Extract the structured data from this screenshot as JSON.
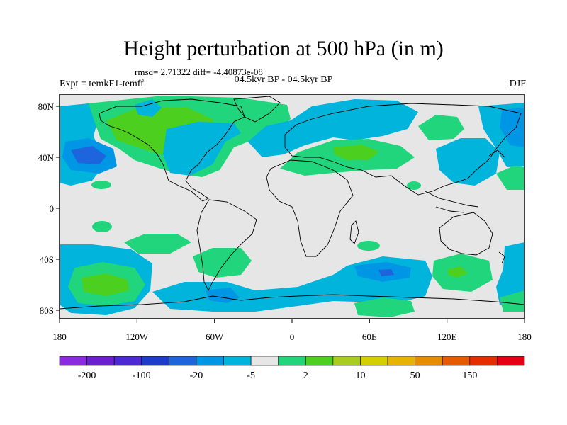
{
  "title": "Height perturbation at 500 hPa (in m)",
  "stats": "rmsd= 2.71322  diff= -4.40873e-08",
  "period": "04.5kyr BP - 04.5kyr BP",
  "expt": "Expt = temkF1-temff",
  "season": "DJF",
  "lat_ticks": [
    "80N",
    "40N",
    "0",
    "40S",
    "80S"
  ],
  "lon_ticks": [
    "180",
    "120W",
    "60W",
    "0",
    "60E",
    "120E",
    "180"
  ],
  "colors": {
    "background": "#e6e6e6",
    "land_outline": "#000000",
    "neg_light": "#00b4dc",
    "neg_mid": "#0096e6",
    "neg_dark": "#1e64dc",
    "pos_light": "#21d57c",
    "pos_mid": "#4ccf1e"
  },
  "colorbar": {
    "colors": [
      "#8a2be2",
      "#6a1fd0",
      "#4b2ad6",
      "#1e3ccc",
      "#1e64dc",
      "#0096e6",
      "#00b4dc",
      "#e6e6e6",
      "#21d57c",
      "#4ccf1e",
      "#aacc1e",
      "#d4cf00",
      "#e6b400",
      "#e68c00",
      "#e65a00",
      "#e62d00",
      "#e60014"
    ],
    "labels": [
      "-200",
      "-100",
      "-20",
      "-5",
      "2",
      "10",
      "50",
      "150"
    ]
  }
}
